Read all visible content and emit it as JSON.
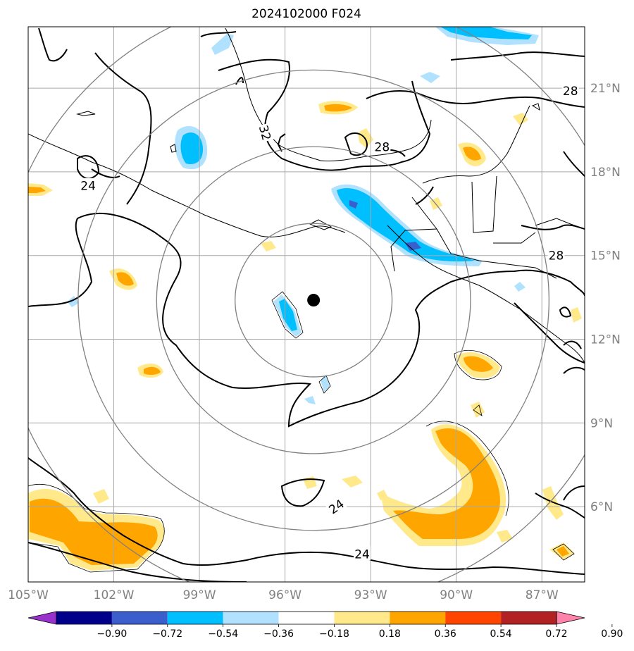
{
  "title": "2024102000 F024",
  "map": {
    "lon_min": -105,
    "lon_max": -85.5,
    "lat_min": 3.3,
    "lat_max": 23.2,
    "lon_ticks": [
      -105,
      -102,
      -99,
      -96,
      -93,
      -90,
      -87
    ],
    "lon_labels": [
      "105°W",
      "102°W",
      "99°W",
      "96°W",
      "93°W",
      "90°W",
      "87°W"
    ],
    "lat_ticks": [
      6,
      9,
      12,
      15,
      18,
      21
    ],
    "lat_labels": [
      "6°N",
      "9°N",
      "12°N",
      "15°N",
      "18°N",
      "21°N"
    ],
    "storm_center": {
      "lon": -95.0,
      "lat": 13.4
    },
    "range_ring_radii_deg": [
      2.75,
      5.5,
      8.25,
      11.0
    ],
    "contour_labels": [
      {
        "text": "32",
        "lon": -96.7,
        "lat": 19.4,
        "rot": 75
      },
      {
        "text": "28",
        "lon": -92.6,
        "lat": 18.9,
        "rot": 0
      },
      {
        "text": "28",
        "lon": -86.0,
        "lat": 20.9,
        "rot": 0
      },
      {
        "text": "24",
        "lon": -102.9,
        "lat": 17.5,
        "rot": 0
      },
      {
        "text": "28",
        "lon": -86.5,
        "lat": 15.0,
        "rot": 0
      },
      {
        "text": "24",
        "lon": -94.2,
        "lat": 6.0,
        "rot": -35
      },
      {
        "text": "24",
        "lon": -93.3,
        "lat": 4.3,
        "rot": 0
      }
    ]
  },
  "colorbar": {
    "labels": [
      "−0.90",
      "−0.72",
      "−0.54",
      "−0.36",
      "−0.18",
      "0.18",
      "0.36",
      "0.54",
      "0.72",
      "0.90"
    ],
    "colors": [
      "#9932cc",
      "#00008b",
      "#3a5fcd",
      "#00bfff",
      "#b0e2ff",
      "#ffffff",
      "#ffe98a",
      "#ffa500",
      "#ff4500",
      "#b22222",
      "#ff82ab"
    ]
  },
  "legend_colors": {
    "contour": "#000000",
    "grid": "#a9a9a9",
    "ring": "#808080",
    "storm_marker": "#000000"
  }
}
